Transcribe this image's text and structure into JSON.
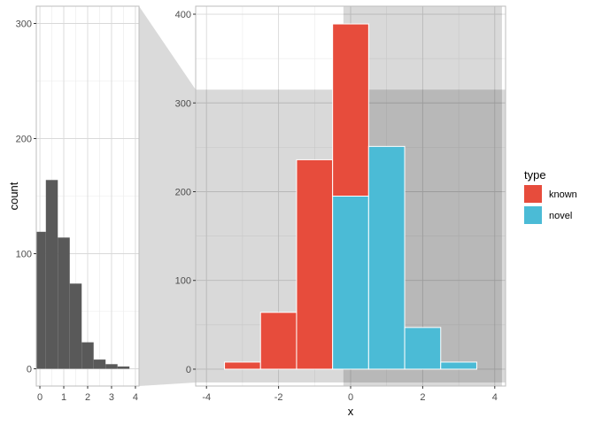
{
  "chart_data": [
    {
      "type": "bar",
      "panel": "zoom-overview",
      "title": "",
      "xlabel": "",
      "ylabel": "count",
      "xlim": [
        -0.15,
        4.15
      ],
      "ylim": [
        -15,
        315
      ],
      "x_ticks": [
        0,
        1,
        2,
        3,
        4
      ],
      "y_ticks": [
        0,
        100,
        200,
        300
      ],
      "bin_width": 0.5,
      "bins": [
        {
          "x0": -0.25,
          "x1": 0.25,
          "value": 119
        },
        {
          "x0": 0.25,
          "x1": 0.75,
          "value": 164
        },
        {
          "x0": 0.75,
          "x1": 1.25,
          "value": 114
        },
        {
          "x0": 1.25,
          "x1": 1.75,
          "value": 74
        },
        {
          "x0": 1.75,
          "x1": 2.25,
          "value": 23
        },
        {
          "x0": 2.25,
          "x1": 2.75,
          "value": 8
        },
        {
          "x0": 2.75,
          "x1": 3.25,
          "value": 4
        },
        {
          "x0": 3.25,
          "x1": 3.75,
          "value": 2
        }
      ],
      "bar_color": "#595959",
      "grid": true
    },
    {
      "type": "bar",
      "panel": "main",
      "stacked": true,
      "title": "",
      "xlabel": "x",
      "ylabel": "",
      "xlim": [
        -4.3,
        4.3
      ],
      "ylim": [
        -19,
        409
      ],
      "x_ticks": [
        -4,
        -2,
        0,
        2,
        4
      ],
      "y_ticks": [
        0,
        100,
        200,
        300,
        400
      ],
      "bin_width": 1,
      "bins": [
        {
          "x0": -3.5,
          "x1": -2.5,
          "known": 8,
          "novel": 0
        },
        {
          "x0": -2.5,
          "x1": -1.5,
          "known": 64,
          "novel": 0
        },
        {
          "x0": -1.5,
          "x1": -0.5,
          "known": 236,
          "novel": 0
        },
        {
          "x0": -0.5,
          "x1": 0.5,
          "known": 194,
          "novel": 195
        },
        {
          "x0": 0.5,
          "x1": 1.5,
          "known": 0,
          "novel": 251
        },
        {
          "x0": 1.5,
          "x1": 2.5,
          "known": 0,
          "novel": 47
        },
        {
          "x0": 2.5,
          "x1": 3.5,
          "known": 0,
          "novel": 8
        }
      ],
      "series": [
        {
          "name": "known",
          "color": "#E74C3C"
        },
        {
          "name": "novel",
          "color": "#4BBBD6"
        }
      ],
      "zoom_region": {
        "xmin": -0.2,
        "xmax": 4.2,
        "ymin": -15,
        "ymax": 315
      },
      "grid": true,
      "legend": {
        "title": "type",
        "position": "right",
        "entries": [
          "known",
          "novel"
        ]
      }
    }
  ]
}
